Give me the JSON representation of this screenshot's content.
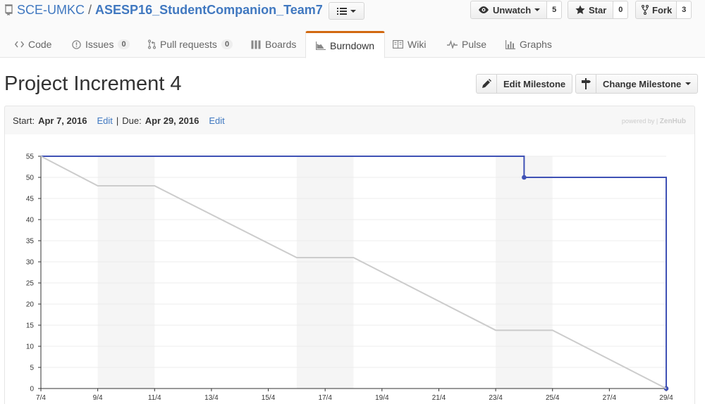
{
  "repo": {
    "owner": "SCE-UMKC",
    "separator": "/",
    "name": "ASESP16_StudentCompanion_Team7"
  },
  "actions": {
    "watch": {
      "label": "Unwatch",
      "count": "5"
    },
    "star": {
      "label": "Star",
      "count": "0"
    },
    "fork": {
      "label": "Fork",
      "count": "3"
    }
  },
  "tabs": [
    {
      "label": "Code",
      "icon": "code-icon"
    },
    {
      "label": "Issues",
      "count": "0",
      "icon": "issue-icon"
    },
    {
      "label": "Pull requests",
      "count": "0",
      "icon": "pull-request-icon"
    },
    {
      "label": "Boards",
      "icon": "boards-icon"
    },
    {
      "label": "Burndown",
      "icon": "burndown-icon",
      "selected": true
    },
    {
      "label": "Wiki",
      "icon": "book-icon"
    },
    {
      "label": "Pulse",
      "icon": "pulse-icon"
    },
    {
      "label": "Graphs",
      "icon": "graph-icon"
    }
  ],
  "milestone": {
    "title": "Project Increment 4",
    "edit_label": "Edit Milestone",
    "change_label": "Change Milestone",
    "start_label": "Start:",
    "start_date": "Apr 7, 2016",
    "due_label": "Due:",
    "due_date": "Apr 29, 2016",
    "edit_link": "Edit",
    "separator": "|",
    "powered_by": "powered by |",
    "powered_brand": "ZenHub"
  },
  "colors": {
    "link": "#4078c0",
    "remaining_line": "#3f51b5",
    "ideal_line": "#cccccc",
    "weekend_band": "#f5f5f5",
    "selected_tab_accent": "#d26911"
  },
  "chart_data": {
    "type": "line",
    "title": "",
    "xlabel": "",
    "ylabel": "",
    "x_ticks": [
      "7/4",
      "9/4",
      "11/4",
      "13/4",
      "15/4",
      "17/4",
      "19/4",
      "21/4",
      "23/4",
      "25/4",
      "27/4",
      "29/4"
    ],
    "x_range": [
      "2016-04-07",
      "2016-04-29"
    ],
    "y_ticks": [
      0,
      5,
      10,
      15,
      20,
      25,
      30,
      35,
      40,
      45,
      50,
      55
    ],
    "ylim": [
      0,
      55
    ],
    "grid": true,
    "weekend_bands": [
      [
        "2016-04-09",
        "2016-04-11"
      ],
      [
        "2016-04-16",
        "2016-04-18"
      ],
      [
        "2016-04-23",
        "2016-04-25"
      ]
    ],
    "series": [
      {
        "style": "step",
        "points": [
          {
            "x": "2016-04-07",
            "y": 55
          },
          {
            "x": "2016-04-24",
            "y": 55
          },
          {
            "x": "2016-04-24",
            "y": 50,
            "marker": true
          },
          {
            "x": "2016-04-29",
            "y": 50
          },
          {
            "x": "2016-04-29",
            "y": 0,
            "marker": true
          }
        ]
      },
      {
        "style": "ideal",
        "points": [
          {
            "x": "2016-04-07",
            "y": 55
          },
          {
            "x": "2016-04-09",
            "y": 48
          },
          {
            "x": "2016-04-11",
            "y": 48
          },
          {
            "x": "2016-04-16",
            "y": 31
          },
          {
            "x": "2016-04-18",
            "y": 31
          },
          {
            "x": "2016-04-23",
            "y": 13.8
          },
          {
            "x": "2016-04-25",
            "y": 13.8
          },
          {
            "x": "2016-04-29",
            "y": 0
          }
        ]
      }
    ]
  }
}
